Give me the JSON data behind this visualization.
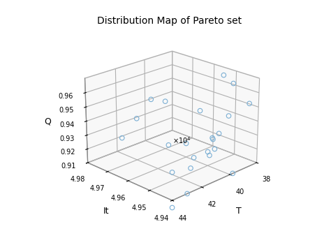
{
  "title": "Distribution Map of Pareto set",
  "xlabel": "T",
  "ylabel": "It",
  "zlabel": "Q",
  "x_data": [
    44,
    43,
    42.5,
    42,
    42,
    41.5,
    41,
    40.5,
    40,
    40,
    39.8,
    39.5,
    39.2,
    39,
    38.7,
    38.5,
    38.2,
    38.1,
    38,
    40,
    41,
    42,
    43
  ],
  "y_data": [
    4.94,
    4.94,
    4.95,
    4.945,
    4.955,
    4.94,
    4.95,
    4.945,
    4.95,
    4.96,
    4.94,
    4.95,
    4.95,
    4.96,
    4.94,
    4.95,
    4.95,
    4.955,
    4.96,
    4.97,
    4.97,
    4.97,
    4.97
  ],
  "z_data": [
    0.905,
    0.91,
    0.916,
    0.92,
    0.93,
    0.93,
    0.92,
    0.935,
    0.92,
    0.92,
    0.91,
    0.92,
    0.93,
    0.94,
    0.955,
    0.94,
    0.962,
    0.965,
    0.915,
    0.945,
    0.95,
    0.94,
    0.93
  ],
  "xlim": [
    44,
    38
  ],
  "ylim": [
    4.94,
    4.98
  ],
  "zlim": [
    0.91,
    0.97
  ],
  "xticks": [
    44,
    42,
    40,
    38
  ],
  "yticks": [
    4.94,
    4.95,
    4.96,
    4.97,
    4.98
  ],
  "zticks": [
    0.91,
    0.92,
    0.93,
    0.94,
    0.95,
    0.96
  ],
  "ytick_labels": [
    "4.94",
    "4.95",
    "4.96",
    "4.97",
    "4.98"
  ],
  "marker_edgecolor": "#7bafd4",
  "marker_size": 22,
  "marker_linewidth": 0.8,
  "elev": 22,
  "azim": -135,
  "pane_color": "#f8f8f8",
  "grid_color": "#d0d0d0",
  "background_color": "#ffffff",
  "title_fontsize": 10,
  "tick_fontsize": 7,
  "label_fontsize": 9
}
